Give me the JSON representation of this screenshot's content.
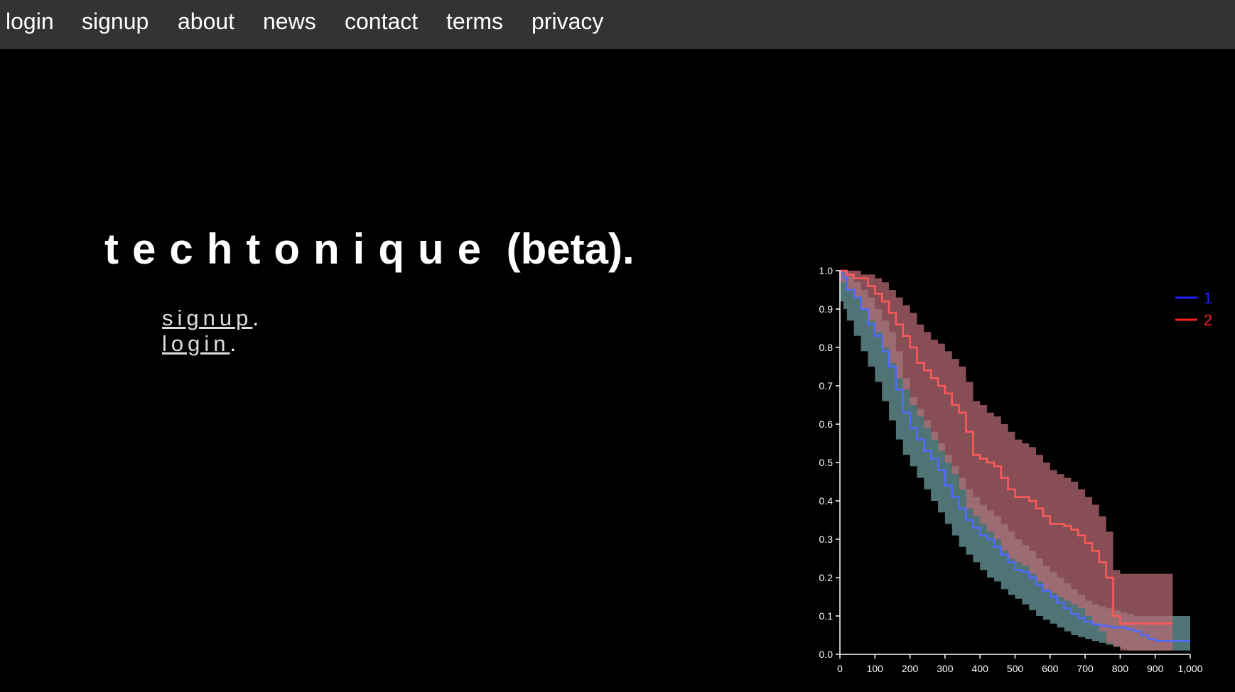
{
  "nav": {
    "items": [
      {
        "label": "login"
      },
      {
        "label": "signup"
      },
      {
        "label": "about"
      },
      {
        "label": "news"
      },
      {
        "label": "contact"
      },
      {
        "label": "terms"
      },
      {
        "label": "privacy"
      }
    ]
  },
  "hero": {
    "title_spaced": "techtonique",
    "title_suffix": " (beta).",
    "signup_label": "signup",
    "login_label": "login",
    "period": "."
  },
  "colors": {
    "navbar_bg": "#333333",
    "page_bg": "#000000",
    "series1": "#4f6bff",
    "series2": "#ff5a5a",
    "band1": "#6b9a9c",
    "band2": "#b46a72",
    "legend1": "#1f1fff",
    "legend2": "#ff1f1f"
  },
  "chart_data": {
    "type": "line",
    "title": "",
    "xlabel": "",
    "ylabel": "",
    "xlim": [
      0,
      1000
    ],
    "ylim": [
      0,
      1
    ],
    "x_ticks": [
      0,
      100,
      200,
      300,
      400,
      500,
      600,
      700,
      800,
      900,
      1000
    ],
    "x_tick_labels": [
      "0",
      "100",
      "200",
      "300",
      "400",
      "500",
      "600",
      "700",
      "800",
      "900",
      "1,000"
    ],
    "y_ticks": [
      0,
      0.1,
      0.2,
      0.3,
      0.4,
      0.5,
      0.6,
      0.7,
      0.8,
      0.9,
      1.0
    ],
    "y_tick_labels": [
      "0.0",
      "0.1",
      "0.2",
      "0.3",
      "0.4",
      "0.5",
      "0.6",
      "0.7",
      "0.8",
      "0.9",
      "1.0"
    ],
    "legend_position": "top-right",
    "series": [
      {
        "name": "1",
        "x": [
          0,
          10,
          20,
          40,
          60,
          80,
          100,
          120,
          140,
          160,
          180,
          200,
          220,
          240,
          260,
          280,
          300,
          320,
          340,
          360,
          380,
          400,
          420,
          440,
          460,
          480,
          500,
          520,
          540,
          560,
          580,
          600,
          620,
          640,
          660,
          680,
          700,
          720,
          740,
          760,
          780,
          800,
          820,
          840,
          860,
          880,
          900,
          920,
          1000
        ],
        "y": [
          1.0,
          0.98,
          0.95,
          0.93,
          0.9,
          0.86,
          0.83,
          0.79,
          0.75,
          0.69,
          0.63,
          0.59,
          0.56,
          0.53,
          0.51,
          0.48,
          0.44,
          0.41,
          0.38,
          0.35,
          0.33,
          0.31,
          0.3,
          0.28,
          0.26,
          0.24,
          0.22,
          0.215,
          0.2,
          0.18,
          0.165,
          0.15,
          0.135,
          0.12,
          0.105,
          0.095,
          0.085,
          0.078,
          0.075,
          0.073,
          0.07,
          0.07,
          0.065,
          0.06,
          0.05,
          0.04,
          0.035,
          0.035,
          0.035
        ],
        "lower": [
          0.93,
          0.92,
          0.9,
          0.87,
          0.83,
          0.79,
          0.75,
          0.71,
          0.66,
          0.61,
          0.56,
          0.52,
          0.49,
          0.46,
          0.43,
          0.4,
          0.37,
          0.34,
          0.31,
          0.28,
          0.26,
          0.24,
          0.22,
          0.2,
          0.19,
          0.17,
          0.155,
          0.145,
          0.13,
          0.115,
          0.1,
          0.09,
          0.08,
          0.07,
          0.06,
          0.05,
          0.045,
          0.04,
          0.035,
          0.03,
          0.025,
          0.02,
          0.015,
          0.01,
          0.01,
          0.01,
          0.01,
          0.01,
          0.01
        ],
        "upper": [
          1.0,
          1.0,
          0.99,
          0.97,
          0.95,
          0.93,
          0.9,
          0.87,
          0.84,
          0.79,
          0.72,
          0.67,
          0.64,
          0.61,
          0.58,
          0.55,
          0.52,
          0.49,
          0.46,
          0.43,
          0.41,
          0.39,
          0.375,
          0.36,
          0.34,
          0.32,
          0.3,
          0.285,
          0.27,
          0.25,
          0.23,
          0.215,
          0.2,
          0.185,
          0.17,
          0.155,
          0.14,
          0.13,
          0.125,
          0.12,
          0.115,
          0.11,
          0.105,
          0.1,
          0.1,
          0.1,
          0.1,
          0.1,
          0.1
        ]
      },
      {
        "name": "2",
        "x": [
          0,
          20,
          40,
          60,
          80,
          100,
          120,
          140,
          160,
          180,
          200,
          220,
          240,
          260,
          280,
          300,
          320,
          340,
          360,
          380,
          400,
          420,
          440,
          460,
          480,
          500,
          520,
          540,
          560,
          580,
          600,
          620,
          640,
          660,
          680,
          700,
          720,
          740,
          760,
          780,
          800,
          820,
          840,
          860,
          880,
          900,
          950
        ],
        "y": [
          1.0,
          0.99,
          0.98,
          0.98,
          0.96,
          0.94,
          0.92,
          0.89,
          0.86,
          0.83,
          0.8,
          0.76,
          0.74,
          0.72,
          0.7,
          0.68,
          0.65,
          0.63,
          0.58,
          0.52,
          0.51,
          0.5,
          0.49,
          0.46,
          0.43,
          0.41,
          0.41,
          0.4,
          0.38,
          0.36,
          0.34,
          0.34,
          0.335,
          0.325,
          0.31,
          0.29,
          0.27,
          0.24,
          0.2,
          0.1,
          0.08,
          0.08,
          0.08,
          0.08,
          0.08,
          0.08,
          0.08
        ],
        "lower": [
          0.99,
          0.97,
          0.95,
          0.93,
          0.9,
          0.87,
          0.84,
          0.8,
          0.76,
          0.72,
          0.69,
          0.65,
          0.62,
          0.59,
          0.56,
          0.53,
          0.5,
          0.47,
          0.43,
          0.38,
          0.36,
          0.34,
          0.32,
          0.3,
          0.27,
          0.25,
          0.24,
          0.23,
          0.21,
          0.19,
          0.17,
          0.16,
          0.15,
          0.14,
          0.13,
          0.12,
          0.1,
          0.08,
          0.06,
          0.03,
          0.02,
          0.01,
          0.01,
          0.01,
          0.01,
          0.01,
          0.01
        ],
        "upper": [
          1.0,
          1.0,
          1.0,
          0.99,
          0.99,
          0.98,
          0.97,
          0.95,
          0.93,
          0.91,
          0.89,
          0.86,
          0.84,
          0.82,
          0.81,
          0.79,
          0.77,
          0.75,
          0.71,
          0.66,
          0.65,
          0.63,
          0.62,
          0.6,
          0.58,
          0.56,
          0.55,
          0.54,
          0.52,
          0.5,
          0.48,
          0.47,
          0.46,
          0.45,
          0.43,
          0.41,
          0.39,
          0.36,
          0.32,
          0.22,
          0.21,
          0.21,
          0.21,
          0.21,
          0.21,
          0.21,
          0.21
        ]
      }
    ]
  }
}
